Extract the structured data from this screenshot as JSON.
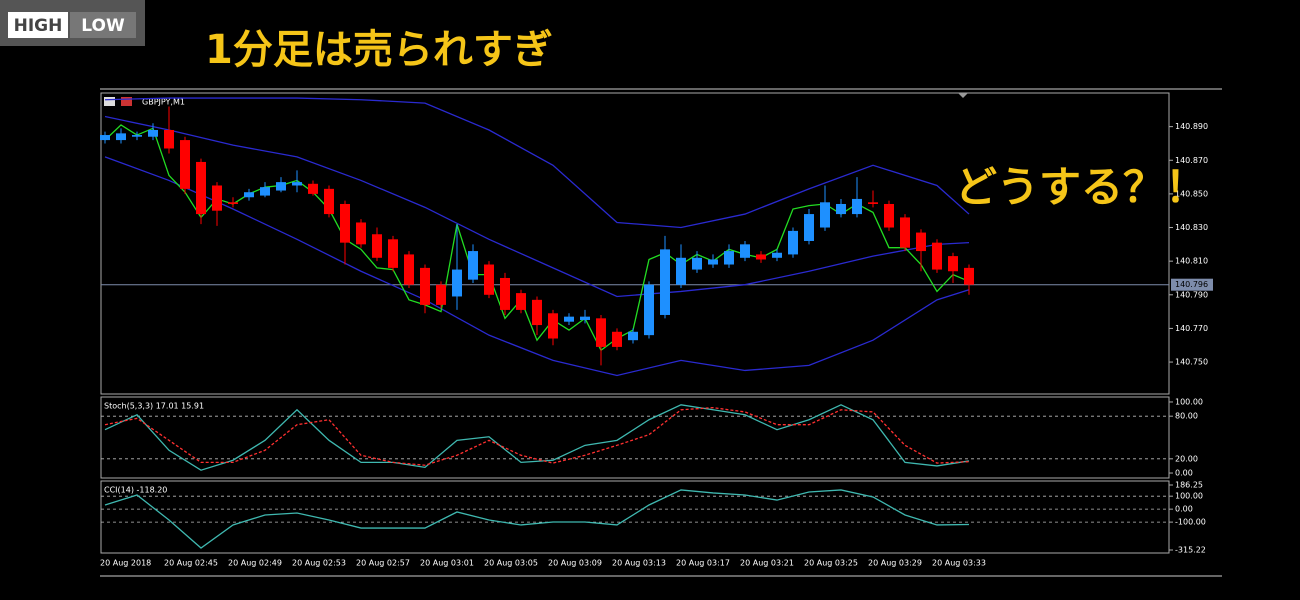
{
  "logo": {
    "left": "HIGH",
    "right": "LOW"
  },
  "headline": "1分足は売られすぎ",
  "annotation": "どうする？！",
  "chart_data": [
    {
      "type": "candlestick",
      "title": "GBPJPY,M1",
      "categories": [
        "20 Aug 2018",
        null,
        null,
        null,
        "20 Aug 02:45",
        null,
        null,
        null,
        "20 Aug 02:49",
        null,
        null,
        null,
        "20 Aug 02:53",
        null,
        null,
        null,
        "20 Aug 02:57",
        null,
        null,
        null,
        "20 Aug 03:01",
        null,
        null,
        null,
        "20 Aug 03:05",
        null,
        null,
        null,
        "20 Aug 03:09",
        null,
        null,
        null,
        "20 Aug 03:13",
        null,
        null,
        null,
        "20 Aug 03:17",
        null,
        null,
        null,
        "20 Aug 03:21",
        null,
        null,
        null,
        "20 Aug 03:25",
        null,
        null,
        null,
        "20 Aug 03:29",
        null,
        null,
        null,
        "20 Aug 03:33",
        null,
        null
      ],
      "open": [
        140.882,
        140.882,
        140.884,
        140.884,
        140.888,
        140.882,
        140.869,
        140.855,
        140.845,
        140.848,
        140.849,
        140.852,
        140.855,
        140.856,
        140.853,
        140.844,
        140.833,
        140.826,
        140.823,
        140.814,
        140.806,
        140.796,
        140.789,
        140.799,
        140.808,
        140.8,
        140.791,
        140.787,
        140.779,
        140.774,
        140.775,
        140.776,
        140.768,
        140.763,
        140.766,
        140.778,
        140.796,
        140.805,
        140.808,
        140.808,
        140.812,
        140.814,
        140.812,
        140.814,
        140.822,
        140.83,
        140.838,
        140.838,
        140.845,
        140.844,
        140.836,
        140.827,
        140.821,
        140.813,
        140.806
      ],
      "high": [
        140.887,
        140.889,
        140.887,
        140.892,
        140.902,
        140.884,
        140.871,
        140.857,
        140.848,
        140.853,
        140.857,
        140.86,
        140.864,
        140.858,
        140.855,
        140.846,
        140.835,
        140.83,
        140.825,
        140.816,
        140.808,
        140.798,
        140.832,
        140.82,
        140.81,
        140.803,
        140.793,
        140.789,
        140.781,
        140.779,
        140.781,
        140.778,
        140.77,
        140.77,
        140.798,
        140.825,
        140.82,
        140.816,
        140.814,
        140.82,
        140.822,
        140.816,
        140.817,
        140.83,
        140.841,
        140.855,
        140.847,
        140.86,
        140.852,
        140.846,
        140.838,
        140.829,
        140.823,
        140.815,
        140.808
      ],
      "low": [
        140.88,
        140.88,
        140.882,
        140.882,
        140.874,
        140.85,
        140.832,
        140.831,
        140.842,
        140.846,
        140.848,
        140.851,
        140.851,
        140.849,
        140.836,
        140.808,
        140.818,
        140.81,
        140.804,
        140.794,
        140.779,
        140.782,
        140.781,
        140.797,
        140.788,
        140.778,
        140.779,
        140.766,
        140.76,
        140.772,
        140.773,
        140.748,
        140.757,
        140.761,
        140.764,
        140.776,
        140.794,
        140.803,
        140.806,
        140.806,
        140.81,
        140.809,
        140.81,
        140.812,
        140.82,
        140.828,
        140.836,
        140.836,
        140.842,
        140.828,
        140.816,
        140.804,
        140.803,
        140.797,
        140.79
      ],
      "close": [
        140.885,
        140.886,
        140.885,
        140.888,
        140.877,
        140.853,
        140.838,
        140.84,
        140.844,
        140.851,
        140.854,
        140.857,
        140.857,
        140.85,
        140.838,
        140.821,
        140.82,
        140.812,
        140.806,
        140.796,
        140.784,
        140.784,
        140.805,
        140.816,
        140.79,
        140.781,
        140.781,
        140.772,
        140.764,
        140.777,
        140.777,
        140.759,
        140.759,
        140.768,
        140.796,
        140.817,
        140.812,
        140.812,
        140.811,
        140.816,
        140.82,
        140.811,
        140.815,
        140.828,
        140.838,
        140.845,
        140.844,
        140.847,
        140.844,
        140.83,
        140.818,
        140.816,
        140.805,
        140.804,
        140.796
      ],
      "up_color": "#1e90ff",
      "down_color": "#ff0000",
      "ylim": [
        140.731,
        140.91
      ],
      "yticks": [
        {
          "value": 140.75,
          "label": "140.750"
        },
        {
          "value": 140.77,
          "label": "140.770"
        },
        {
          "value": 140.79,
          "label": "140.790"
        },
        {
          "value": 140.81,
          "label": "140.810"
        },
        {
          "value": 140.83,
          "label": "140.830"
        },
        {
          "value": 140.85,
          "label": "140.850"
        },
        {
          "value": 140.87,
          "label": "140.870"
        },
        {
          "value": 140.89,
          "label": "140.890"
        }
      ],
      "current_price": 140.796,
      "series": [
        {
          "color": "#2a2ad0",
          "x": [
            0,
            4,
            8,
            12,
            16,
            20,
            24,
            28,
            32,
            36,
            40,
            44,
            48,
            52,
            54
          ],
          "values": [
            140.906,
            140.907,
            140.907,
            140.907,
            140.906,
            140.904,
            140.888,
            140.867,
            140.833,
            140.83,
            140.838,
            140.853,
            140.867,
            140.855,
            140.838
          ]
        },
        {
          "color": "#2a2ad0",
          "x": [
            0,
            4,
            8,
            12,
            16,
            20,
            24,
            28,
            32,
            36,
            40,
            44,
            48,
            52,
            54
          ],
          "values": [
            140.896,
            140.888,
            140.879,
            140.872,
            140.858,
            140.842,
            140.823,
            140.806,
            140.789,
            140.792,
            140.796,
            140.804,
            140.813,
            140.82,
            140.821
          ]
        },
        {
          "color": "#2a2ad0",
          "x": [
            0,
            4,
            8,
            12,
            16,
            20,
            24,
            28,
            32,
            36,
            40,
            44,
            48,
            52,
            54
          ],
          "values": [
            140.872,
            140.858,
            140.841,
            140.823,
            140.804,
            140.787,
            140.766,
            140.751,
            140.742,
            140.751,
            140.745,
            140.748,
            140.763,
            140.787,
            140.793
          ]
        },
        {
          "color": "#22dd22",
          "values": [
            140.882,
            140.891,
            140.885,
            140.889,
            140.861,
            140.851,
            140.836,
            140.847,
            140.844,
            140.85,
            140.854,
            140.855,
            140.858,
            140.851,
            140.841,
            140.823,
            140.817,
            140.806,
            140.805,
            140.787,
            140.784,
            140.78,
            140.832,
            140.802,
            140.802,
            140.776,
            140.787,
            140.763,
            140.775,
            140.769,
            140.776,
            140.757,
            140.764,
            140.769,
            140.811,
            140.815,
            140.808,
            140.814,
            140.81,
            140.817,
            140.814,
            140.812,
            140.817,
            140.841,
            140.843,
            140.844,
            140.838,
            140.844,
            140.839,
            140.818,
            140.818,
            140.808,
            140.792,
            140.802,
            140.798
          ]
        }
      ]
    },
    {
      "type": "line",
      "title": "Stoch(5,3,3) 17.01 15.91",
      "x": [
        0,
        2,
        4,
        6,
        8,
        10,
        12,
        14,
        16,
        18,
        20,
        22,
        24,
        26,
        28,
        30,
        32,
        34,
        36,
        38,
        40,
        42,
        44,
        46,
        48,
        50,
        52,
        54
      ],
      "ylim": [
        -7,
        107
      ],
      "yticks": [
        {
          "value": 100,
          "label": "100.00"
        },
        {
          "value": 80,
          "label": "80.00"
        },
        {
          "value": 20,
          "label": "20.00"
        },
        {
          "value": 0,
          "label": "0.00"
        }
      ],
      "gridlines": [
        80,
        20
      ],
      "series": [
        {
          "color": "#3fb8b0",
          "values": [
            61,
            82,
            32,
            4,
            18,
            46,
            89,
            46,
            15,
            15,
            8,
            46,
            51,
            15,
            18,
            39,
            46,
            75,
            96,
            89,
            82,
            61,
            75,
            96,
            75,
            15,
            10,
            17
          ]
        },
        {
          "color": "#ff3030",
          "dashed": true,
          "values": [
            68,
            77,
            46,
            15,
            15,
            32,
            68,
            75,
            25,
            15,
            11,
            25,
            46,
            25,
            14,
            25,
            39,
            54,
            89,
            92,
            86,
            68,
            68,
            89,
            86,
            39,
            14,
            16
          ]
        }
      ]
    },
    {
      "type": "line",
      "title": "CCI(14) -118.20",
      "x": [
        0,
        2,
        4,
        6,
        8,
        10,
        12,
        14,
        16,
        18,
        20,
        22,
        24,
        26,
        28,
        30,
        32,
        34,
        36,
        38,
        40,
        42,
        44,
        46,
        48,
        50,
        52,
        54
      ],
      "ylim": [
        -315.22,
        186.25
      ],
      "yticks": [
        186.25,
        {
          "value": 100,
          "label": "100.00"
        },
        {
          "value": 0,
          "label": "0.00"
        },
        {
          "value": -100,
          "label": "-100.00"
        },
        -315.22
      ],
      "gridlines": [
        100,
        0,
        -100
      ],
      "series": [
        {
          "color": "#3fb8b0",
          "values": [
            32,
            109,
            -84,
            -300,
            -122,
            -45,
            -30,
            -84,
            -146,
            -146,
            -146,
            -22,
            -84,
            -122,
            -99,
            -99,
            -122,
            32,
            148,
            125,
            109,
            70,
            132,
            148,
            94,
            -45,
            -122,
            -118.2
          ]
        }
      ]
    }
  ]
}
